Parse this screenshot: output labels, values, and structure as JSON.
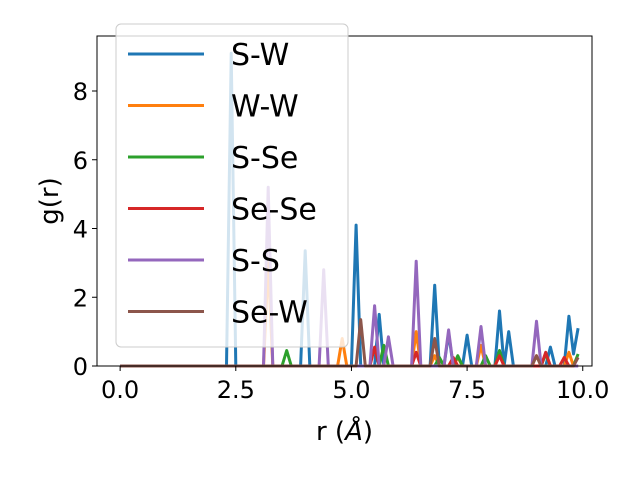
{
  "chart_data": {
    "type": "line",
    "xlabel_pre": "r (",
    "xlabel_unit": "Å",
    "xlabel_post": ")",
    "ylabel": "g(r)",
    "xlim": [
      -0.5,
      10.2
    ],
    "ylim": [
      0,
      9.6
    ],
    "xticks": [
      0.0,
      2.5,
      5.0,
      7.5,
      10.0
    ],
    "xtick_labels": [
      "0.0",
      "2.5",
      "5.0",
      "7.5",
      "10.0"
    ],
    "yticks": [
      0,
      2,
      4,
      6,
      8
    ],
    "ytick_labels": [
      "0",
      "2",
      "4",
      "6",
      "8"
    ],
    "grid": false,
    "legend_position": "upper-left",
    "x": [
      0.0,
      0.1,
      0.2,
      0.3,
      0.4,
      0.5,
      0.6,
      0.7,
      0.8,
      0.9,
      1.0,
      1.1,
      1.2,
      1.3,
      1.4,
      1.5,
      1.6,
      1.7,
      1.8,
      1.9,
      2.0,
      2.1,
      2.2,
      2.3,
      2.4,
      2.5,
      2.6,
      2.7,
      2.8,
      2.9,
      3.0,
      3.1,
      3.2,
      3.3,
      3.4,
      3.5,
      3.6,
      3.7,
      3.8,
      3.9,
      4.0,
      4.1,
      4.2,
      4.3,
      4.4,
      4.5,
      4.6,
      4.7,
      4.8,
      4.9,
      5.0,
      5.1,
      5.2,
      5.3,
      5.4,
      5.5,
      5.6,
      5.7,
      5.8,
      5.9,
      6.0,
      6.1,
      6.2,
      6.3,
      6.4,
      6.5,
      6.6,
      6.7,
      6.8,
      6.9,
      7.0,
      7.1,
      7.2,
      7.3,
      7.4,
      7.5,
      7.6,
      7.7,
      7.8,
      7.9,
      8.0,
      8.1,
      8.2,
      8.3,
      8.4,
      8.5,
      8.6,
      8.7,
      8.8,
      8.9,
      9.0,
      9.1,
      9.2,
      9.3,
      9.4,
      9.5,
      9.6,
      9.7,
      9.8,
      9.9
    ],
    "series": [
      {
        "name": "S-W",
        "color": "#1f77b4",
        "values": [
          0,
          0,
          0,
          0,
          0,
          0,
          0,
          0,
          0,
          0,
          0,
          0,
          0,
          0,
          0,
          0,
          0,
          0,
          0,
          0,
          0,
          0,
          0,
          0,
          9.1,
          0,
          0,
          0,
          0,
          0,
          0,
          0,
          0,
          0,
          0,
          0,
          0,
          0,
          0,
          0,
          3.35,
          0,
          0,
          0,
          0,
          0,
          0,
          0,
          0,
          0,
          0,
          4.1,
          0,
          0,
          0,
          0,
          1.5,
          0,
          0,
          0,
          0,
          0,
          0,
          0,
          0,
          0,
          0,
          0,
          2.35,
          0,
          0,
          0.95,
          0,
          0,
          0,
          0.9,
          0,
          0,
          0,
          0,
          0,
          0,
          1.6,
          0,
          1.0,
          0,
          0,
          0,
          0,
          0,
          0,
          0,
          0,
          0.55,
          0,
          0,
          0,
          1.45,
          0.35,
          1.1
        ]
      },
      {
        "name": "W-W",
        "color": "#ff7f0e",
        "values": [
          0,
          0,
          0,
          0,
          0,
          0,
          0,
          0,
          0,
          0,
          0,
          0,
          0,
          0,
          0,
          0,
          0,
          0,
          0,
          0,
          0,
          0,
          0,
          0,
          0,
          0,
          0,
          0,
          0,
          0,
          0,
          0,
          3.0,
          0,
          0,
          0,
          0,
          0,
          0,
          0,
          0,
          0,
          0,
          0,
          0,
          0,
          0,
          0,
          0.8,
          0,
          0,
          0,
          0,
          0,
          0,
          0,
          0,
          0,
          0,
          0,
          0,
          0,
          0,
          0,
          1.0,
          0,
          0,
          0,
          0.3,
          0,
          0,
          0,
          0,
          0.25,
          0,
          0,
          0,
          0,
          0.6,
          0,
          0,
          0,
          0.35,
          0,
          0,
          0,
          0,
          0,
          0,
          0,
          0.3,
          0,
          0,
          0,
          0,
          0,
          0,
          0.4,
          0,
          0
        ]
      },
      {
        "name": "S-Se",
        "color": "#2ca02c",
        "values": [
          0,
          0,
          0,
          0,
          0,
          0,
          0,
          0,
          0,
          0,
          0,
          0,
          0,
          0,
          0,
          0,
          0,
          0,
          0,
          0,
          0,
          0,
          0,
          0,
          0,
          0,
          0,
          0,
          0,
          0,
          0,
          0,
          0,
          0,
          0,
          0,
          0.45,
          0,
          0,
          0,
          0,
          0,
          0,
          0,
          0,
          0,
          0,
          0,
          0,
          0,
          0,
          0,
          0,
          0,
          0,
          0,
          0,
          0.6,
          0,
          0,
          0,
          0,
          0,
          0,
          0,
          0,
          0,
          0,
          0,
          0.25,
          0,
          0,
          0,
          0.3,
          0,
          0,
          0,
          0,
          0,
          0.3,
          0,
          0,
          0.45,
          0,
          0,
          0,
          0,
          0,
          0,
          0,
          0,
          0,
          0.35,
          0,
          0,
          0,
          0,
          0,
          0,
          0.35
        ]
      },
      {
        "name": "Se-Se",
        "color": "#d62728",
        "values": [
          0,
          0,
          0,
          0,
          0,
          0,
          0,
          0,
          0,
          0,
          0,
          0,
          0,
          0,
          0,
          0,
          0,
          0,
          0,
          0,
          0,
          0,
          0,
          0,
          0,
          0,
          0,
          0,
          0,
          0,
          0,
          0,
          0,
          0,
          0,
          0,
          0,
          0,
          0,
          0,
          0,
          0,
          0,
          0,
          0,
          0,
          0,
          0,
          0,
          0,
          0,
          0,
          0,
          0,
          0,
          0.55,
          0,
          0,
          0,
          0,
          0,
          0,
          0,
          0,
          0.4,
          0,
          0,
          0,
          0,
          0,
          0,
          0,
          0.25,
          0,
          0,
          0,
          0,
          0,
          0,
          0,
          0,
          0,
          0.3,
          0,
          0,
          0,
          0,
          0,
          0,
          0,
          0,
          0,
          0.4,
          0,
          0,
          0,
          0.25,
          0,
          0,
          0
        ]
      },
      {
        "name": "S-S",
        "color": "#9467bd",
        "values": [
          0,
          0,
          0,
          0,
          0,
          0,
          0,
          0,
          0,
          0,
          0,
          0,
          0,
          0,
          0,
          0,
          0,
          0,
          0,
          0,
          0,
          0,
          0,
          0,
          0,
          0,
          0,
          0,
          0,
          0,
          0,
          0,
          5.2,
          0,
          0,
          0,
          0,
          0,
          0,
          0,
          0,
          0,
          0,
          0,
          2.8,
          0,
          0,
          0,
          0,
          0,
          0,
          0,
          0,
          0,
          0,
          1.75,
          0,
          0,
          0.85,
          0,
          0,
          0,
          0,
          0,
          3.05,
          0,
          0,
          0,
          0,
          0,
          0,
          1.05,
          0,
          0,
          0,
          0,
          0,
          0,
          1.15,
          0,
          0,
          0,
          0,
          0,
          0,
          0,
          0,
          0,
          0,
          0,
          1.3,
          0,
          0,
          0,
          0,
          0,
          0,
          0,
          0,
          0
        ]
      },
      {
        "name": "Se-W",
        "color": "#8c564b",
        "values": [
          0,
          0,
          0,
          0,
          0,
          0,
          0,
          0,
          0,
          0,
          0,
          0,
          0,
          0,
          0,
          0,
          0,
          0,
          0,
          0,
          0,
          0,
          0,
          0,
          0,
          0,
          0,
          0,
          0,
          0,
          0,
          0,
          0,
          0,
          0,
          0,
          0,
          0,
          0,
          0,
          0,
          0,
          0,
          0,
          0,
          0,
          0,
          0,
          0,
          0,
          0,
          0,
          1.35,
          0,
          0,
          0,
          0,
          0,
          0,
          0,
          0,
          0,
          0,
          0,
          0,
          0,
          0,
          0,
          0.8,
          0,
          0,
          0,
          0,
          0,
          0,
          0,
          0,
          0,
          0,
          0,
          0,
          0,
          0,
          0,
          0,
          0,
          0,
          0,
          0,
          0,
          0.3,
          0,
          0,
          0,
          0,
          0,
          0,
          0,
          0,
          0.25
        ]
      }
    ]
  }
}
